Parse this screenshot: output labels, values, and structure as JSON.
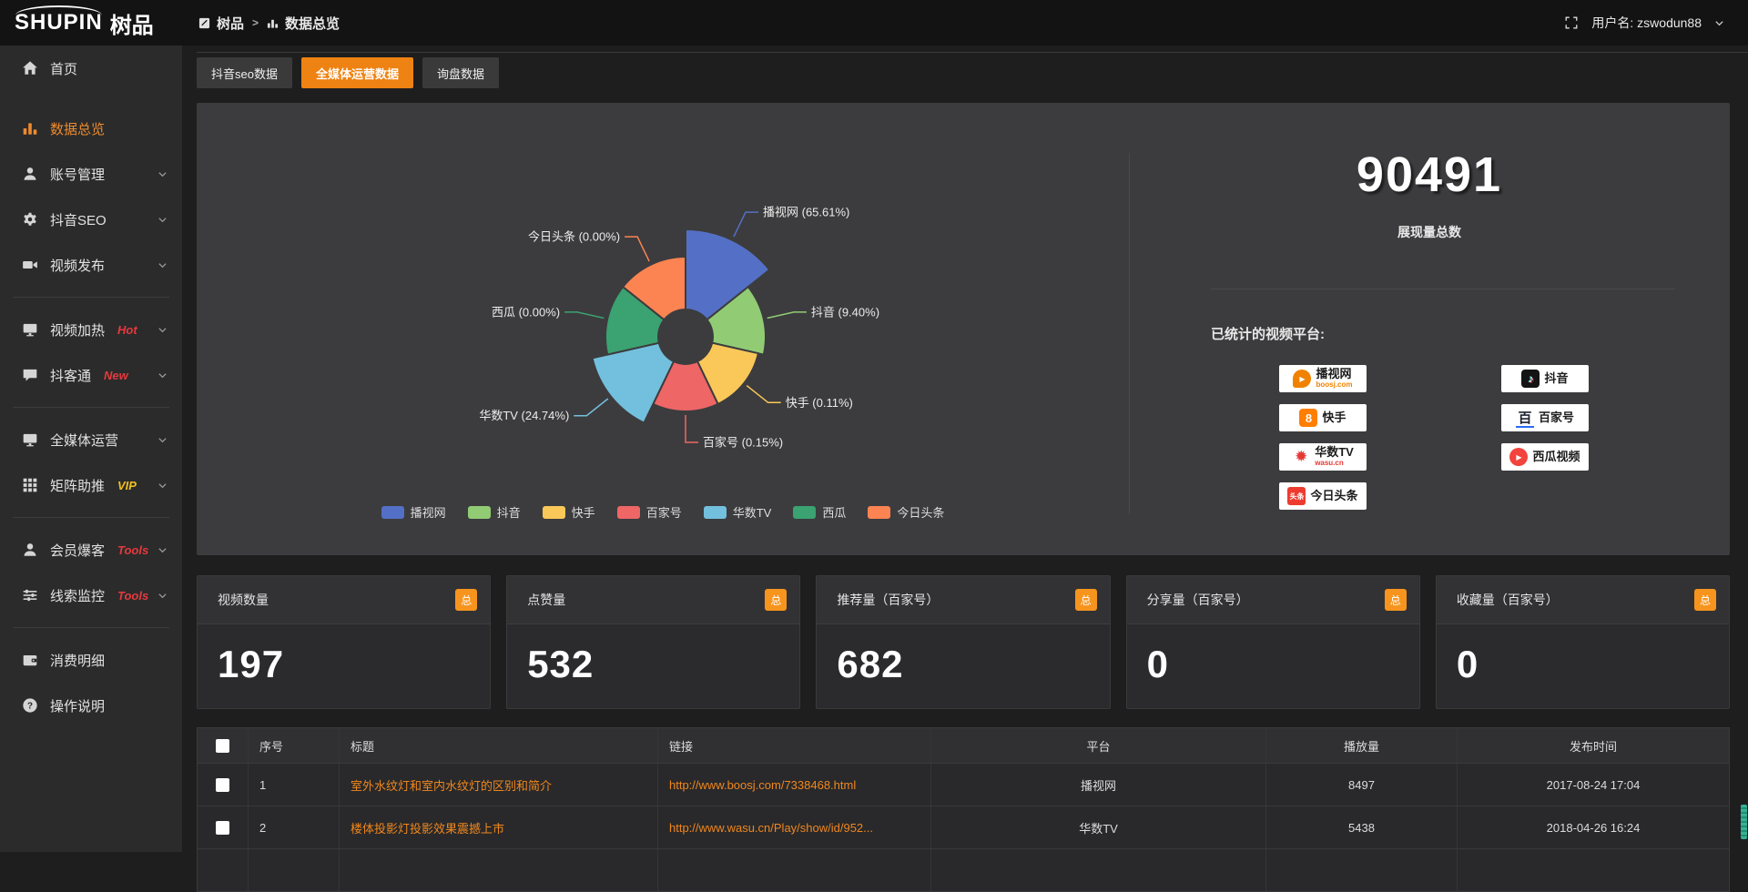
{
  "topbar": {
    "logo_en": "SHUPIN",
    "logo_cn": "树品",
    "breadcrumb": [
      "树品",
      "数据总览"
    ],
    "username": "用户名: zswodun88"
  },
  "tabs": [
    {
      "key": "douyin-seo-data",
      "label": "抖音seo数据",
      "active": false
    },
    {
      "key": "media-operation-data",
      "label": "全媒体运营数据",
      "active": true
    },
    {
      "key": "inquiry-data",
      "label": "询盘数据",
      "active": false
    }
  ],
  "sidebar": {
    "items": [
      {
        "key": "home",
        "label": "首页",
        "icon": "home"
      },
      {
        "key": "data-overview",
        "label": "数据总览",
        "icon": "chart",
        "active": true,
        "mt": true
      },
      {
        "key": "account-management",
        "label": "账号管理",
        "icon": "user",
        "chevron": true
      },
      {
        "key": "douyin-seo",
        "label": "抖音SEO",
        "icon": "gear",
        "chevron": true
      },
      {
        "key": "video-publish",
        "label": "视频发布",
        "icon": "video",
        "chevron": true
      },
      {
        "divider": true
      },
      {
        "key": "video-heat",
        "label": "视频加热",
        "icon": "monitor",
        "tag": "Hot",
        "chevron": true
      },
      {
        "key": "douketong",
        "label": "抖客通",
        "icon": "chat",
        "tag": "New",
        "chevron": true
      },
      {
        "divider": true
      },
      {
        "key": "media-operation",
        "label": "全媒体运营",
        "icon": "display",
        "chevron": true
      },
      {
        "key": "matrix-boost",
        "label": "矩阵助推",
        "icon": "grid",
        "tag": "VIP",
        "tagStyle": "vip",
        "chevron": true
      },
      {
        "divider": true
      },
      {
        "key": "member-baoke",
        "label": "会员爆客",
        "icon": "user",
        "tag": "Tools",
        "chevron": true
      },
      {
        "key": "clue-monitor",
        "label": "线索监控",
        "icon": "sliders",
        "tag": "Tools",
        "chevron": true
      },
      {
        "divider": true
      },
      {
        "key": "consume-detail",
        "label": "消费明细",
        "icon": "wallet"
      },
      {
        "key": "operation-guide",
        "label": "操作说明",
        "icon": "help"
      }
    ]
  },
  "chart_data": {
    "type": "pie",
    "rose": true,
    "inner_radius": 30,
    "legend_position": "bottom",
    "series": [
      {
        "key": "boosj",
        "name": "播视网",
        "value": 65.61,
        "label": "播视网 (65.61%)",
        "color": "#5470c6",
        "radius": 118
      },
      {
        "key": "douyin",
        "name": "抖音",
        "value": 9.4,
        "label": "抖音 (9.40%)",
        "color": "#91cc75",
        "radius": 88
      },
      {
        "key": "kuaishou",
        "name": "快手",
        "value": 0.11,
        "label": "快手 (0.11%)",
        "color": "#fac858",
        "radius": 82
      },
      {
        "key": "baijia",
        "name": "百家号",
        "value": 0.15,
        "label": "百家号 (0.15%)",
        "color": "#ee6666",
        "radius": 82
      },
      {
        "key": "wasu",
        "name": "华数TV",
        "value": 24.74,
        "label": "华数TV (24.74%)",
        "color": "#73c0de",
        "radius": 105
      },
      {
        "key": "xigua",
        "name": "西瓜",
        "value": 0.0,
        "label": "西瓜 (0.00%)",
        "color": "#3ba272",
        "radius": 88
      },
      {
        "key": "toutiao",
        "name": "今日头条",
        "value": 0.0,
        "label": "今日头条 (0.00%)",
        "color": "#fc8452",
        "radius": 88
      }
    ]
  },
  "summary": {
    "total_value": "90491",
    "total_label": "展现量总数",
    "platforms_title": "已统计的视频平台:",
    "platform_columns": [
      [
        {
          "logo": "boosj",
          "name": "播视网",
          "sub": "boosj.com"
        },
        {
          "logo": "kuaishou",
          "name": "快手"
        },
        {
          "logo": "wasu",
          "name": "华数TV",
          "sub": "wasu.cn"
        },
        {
          "logo": "toutiao",
          "name": "今日头条",
          "logo_text": "头条"
        }
      ],
      [
        {
          "logo": "douyin",
          "name": "抖音"
        },
        {
          "logo": "baijia",
          "name": "百家号"
        },
        {
          "logo": "xigua",
          "name": "西瓜视频"
        }
      ]
    ]
  },
  "stat_cards": [
    {
      "key": "video-count",
      "title": "视频数量",
      "badge": "总",
      "value": "197"
    },
    {
      "key": "like-count",
      "title": "点赞量",
      "badge": "总",
      "value": "532"
    },
    {
      "key": "recommend-count",
      "title": "推荐量（百家号）",
      "badge": "总",
      "value": "682"
    },
    {
      "key": "share-count",
      "title": "分享量（百家号）",
      "badge": "总",
      "value": "0"
    },
    {
      "key": "favorite-count",
      "title": "收藏量（百家号）",
      "badge": "总",
      "value": "0"
    }
  ],
  "table": {
    "headers": [
      "序号",
      "标题",
      "链接",
      "平台",
      "播放量",
      "发布时间"
    ],
    "rows": [
      {
        "num": "1",
        "title": "室外水纹灯和室内水纹灯的区别和简介",
        "link": "http://www.boosj.com/7338468.html",
        "platform": "播视网",
        "plays": "8497",
        "time": "2017-08-24 17:04"
      },
      {
        "num": "2",
        "title": "楼体投影灯投影效果震撼上市",
        "link": "http://www.wasu.cn/Play/show/id/952...",
        "platform": "华数TV",
        "plays": "5438",
        "time": "2018-04-26 16:24"
      }
    ]
  },
  "colors": {
    "accent": "#ee8212",
    "badge_orange": "#f7941e",
    "sidebar_active": "#ef8b2d",
    "hot_red": "#e6393d",
    "vip_yellow": "#f0c020",
    "link_orange": "#f0871d",
    "panel_bg": "#3c3c3e"
  }
}
